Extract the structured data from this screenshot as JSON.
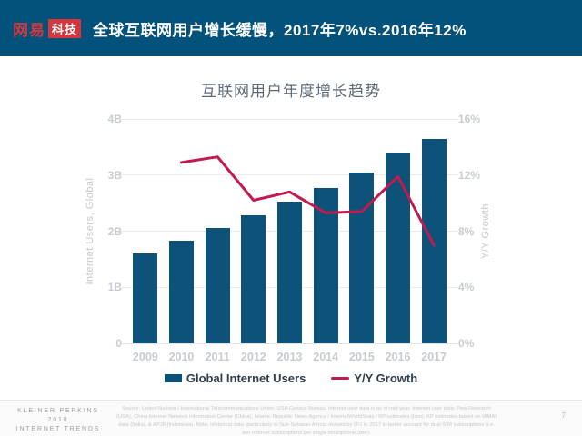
{
  "header": {
    "logo_text": "网易",
    "logo_badge": "科技",
    "title": "全球互联网用户增长缓慢，2017年7%vs.2016年12%"
  },
  "chart_data": {
    "type": "bar",
    "title": "互联网用户年度增长趋势",
    "categories": [
      "2009",
      "2010",
      "2011",
      "2012",
      "2013",
      "2014",
      "2015",
      "2016",
      "2017"
    ],
    "series": [
      {
        "name": "Global Internet Users",
        "type": "bar",
        "axis": "left",
        "unit": "B",
        "color": "#0d5278",
        "values": [
          1.6,
          1.83,
          2.06,
          2.28,
          2.52,
          2.77,
          3.04,
          3.4,
          3.64
        ]
      },
      {
        "name": "Y/Y Growth",
        "type": "line",
        "axis": "right",
        "unit": "%",
        "color": "#c01a50",
        "values": [
          null,
          12.9,
          13.3,
          10.2,
          10.8,
          9.3,
          9.4,
          11.9,
          7.0
        ]
      }
    ],
    "left_axis": {
      "label": "Internet Users, Global",
      "min": 0,
      "max": 4,
      "ticks": [
        "0",
        "1B",
        "2B",
        "3B",
        "4B"
      ]
    },
    "right_axis": {
      "label": "Y/Y Growth",
      "min": 0,
      "max": 16,
      "ticks": [
        "0%",
        "4%",
        "8%",
        "12%",
        "16%"
      ]
    },
    "grid": true,
    "legend_position": "bottom"
  },
  "footer": {
    "brand_line1": "KLEINER PERKINS",
    "brand_line2": "2018",
    "brand_line3": "INTERNET TRENDS",
    "source": "Source: United Nations / International Telecommunications Union, USA Census Bureau. Internet user data is as of mid-year. Internet user data: Pew Research (USA), China Internet Network Information Center (China), Islamic Republic News Agency / InternetWorldStats / KP estimates (Iran), KP estimates based on IAMAI data (India), & APJII (Indonesia). Note: Historical data (particularly in Sub-Saharan Africa) revised by ITU in 2017 to better account for dual-SIM subscriptions (i.e. two Internet subscriptions per single smartphone user).",
    "page": "7"
  }
}
